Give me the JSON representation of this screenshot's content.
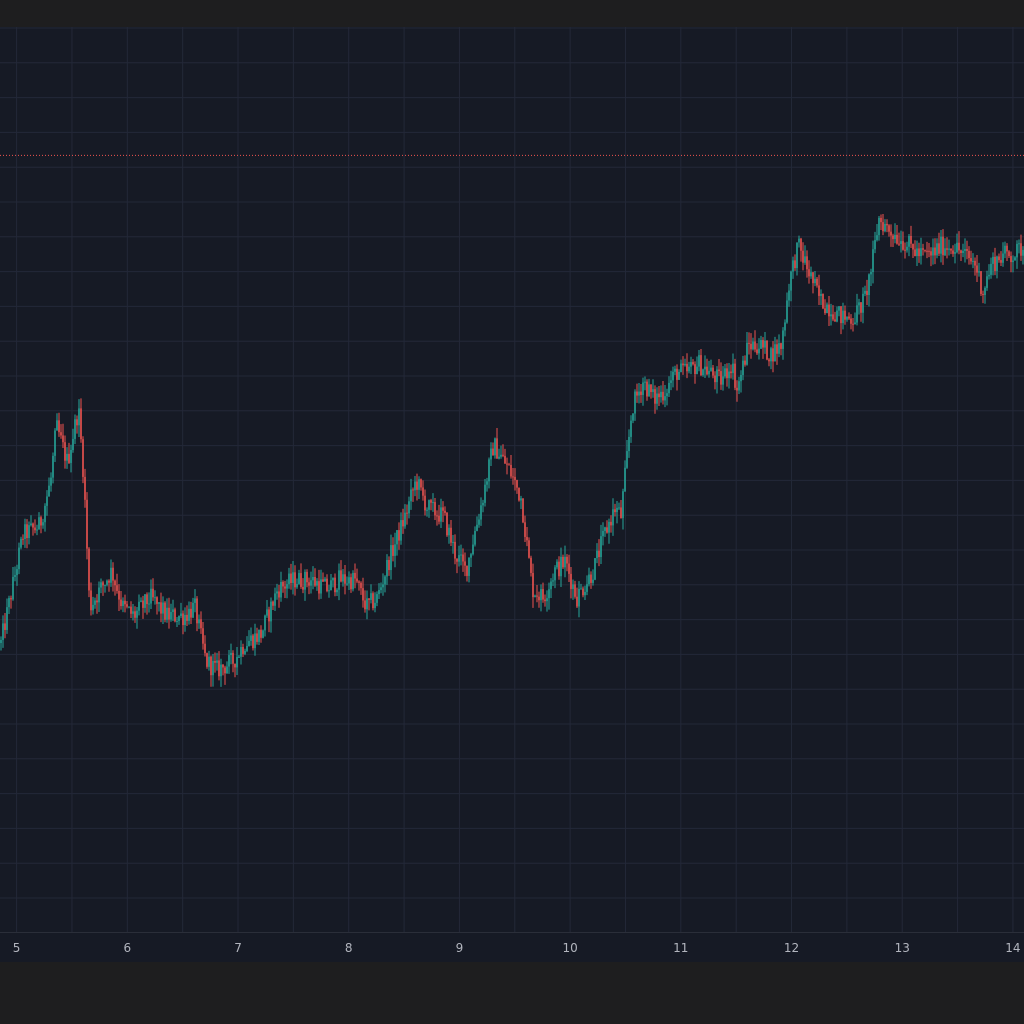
{
  "theme": {
    "background": "#161a25",
    "frame": "#1e1e1f",
    "grid": "#232838",
    "up_color": "#26a69a",
    "down_color": "#ef5350",
    "price_line_color": "#ef5350",
    "axis_text_color": "#b2b5be"
  },
  "chart_data": {
    "type": "candlestick",
    "title": "",
    "xlabel": "",
    "ylabel": "",
    "x_ticks": [
      "5",
      "6",
      "7",
      "8",
      "9",
      "10",
      "11",
      "12",
      "13",
      "14"
    ],
    "x_range": [
      4.85,
      14.1
    ],
    "y_range": [
      0,
      100
    ],
    "grid": true,
    "reference_line": {
      "style": "dotted",
      "value": 86
    },
    "trend_path": [
      [
        4.85,
        32
      ],
      [
        4.95,
        38
      ],
      [
        5.05,
        44
      ],
      [
        5.2,
        45
      ],
      [
        5.3,
        50
      ],
      [
        5.35,
        56
      ],
      [
        5.45,
        52
      ],
      [
        5.55,
        58
      ],
      [
        5.6,
        50
      ],
      [
        5.65,
        36
      ],
      [
        5.75,
        38
      ],
      [
        5.85,
        40
      ],
      [
        5.95,
        36
      ],
      [
        6.05,
        35
      ],
      [
        6.2,
        37
      ],
      [
        6.35,
        35
      ],
      [
        6.5,
        35
      ],
      [
        6.6,
        36
      ],
      [
        6.7,
        30
      ],
      [
        6.8,
        29
      ],
      [
        6.95,
        30
      ],
      [
        7.05,
        32
      ],
      [
        7.2,
        33
      ],
      [
        7.35,
        38
      ],
      [
        7.5,
        39
      ],
      [
        7.65,
        39
      ],
      [
        7.8,
        38
      ],
      [
        7.9,
        39
      ],
      [
        8.05,
        39
      ],
      [
        8.15,
        36
      ],
      [
        8.25,
        37
      ],
      [
        8.35,
        41
      ],
      [
        8.5,
        46
      ],
      [
        8.6,
        50
      ],
      [
        8.7,
        47
      ],
      [
        8.85,
        46
      ],
      [
        8.95,
        42
      ],
      [
        9.05,
        40
      ],
      [
        9.2,
        48
      ],
      [
        9.3,
        54
      ],
      [
        9.45,
        51
      ],
      [
        9.55,
        48
      ],
      [
        9.65,
        38
      ],
      [
        9.75,
        37
      ],
      [
        9.85,
        40
      ],
      [
        9.95,
        41
      ],
      [
        10.05,
        37
      ],
      [
        10.2,
        40
      ],
      [
        10.3,
        44
      ],
      [
        10.4,
        47
      ],
      [
        10.45,
        46
      ],
      [
        10.55,
        58
      ],
      [
        10.65,
        61
      ],
      [
        10.75,
        59
      ],
      [
        10.85,
        60
      ],
      [
        10.95,
        62
      ],
      [
        11.05,
        62
      ],
      [
        11.15,
        63
      ],
      [
        11.25,
        62
      ],
      [
        11.35,
        61
      ],
      [
        11.45,
        63
      ],
      [
        11.5,
        60
      ],
      [
        11.6,
        65
      ],
      [
        11.7,
        65
      ],
      [
        11.8,
        64
      ],
      [
        11.9,
        65
      ],
      [
        11.97,
        72
      ],
      [
        12.05,
        76
      ],
      [
        12.15,
        73
      ],
      [
        12.25,
        70
      ],
      [
        12.35,
        69
      ],
      [
        12.45,
        68
      ],
      [
        12.55,
        68
      ],
      [
        12.65,
        70
      ],
      [
        12.72,
        74
      ],
      [
        12.78,
        79
      ],
      [
        12.85,
        78
      ],
      [
        12.95,
        77
      ],
      [
        13.05,
        76
      ],
      [
        13.15,
        75
      ],
      [
        13.25,
        75
      ],
      [
        13.35,
        76
      ],
      [
        13.45,
        76
      ],
      [
        13.55,
        75
      ],
      [
        13.65,
        74
      ],
      [
        13.72,
        71
      ],
      [
        13.8,
        74
      ],
      [
        13.9,
        75
      ],
      [
        14.0,
        75
      ],
      [
        14.1,
        76
      ]
    ]
  }
}
